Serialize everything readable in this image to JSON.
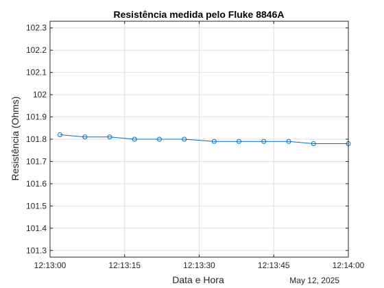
{
  "chart_data": {
    "type": "line",
    "title": "Resistência medida pelo Fluke 8846A",
    "xlabel": "Data e Hora",
    "ylabel": "Resistência (Ohms)",
    "date_label": "May 12, 2025",
    "x_ticks": [
      "12:13:00",
      "12:13:15",
      "12:13:30",
      "12:13:45",
      "12:14:00"
    ],
    "x_tick_seconds": [
      0,
      15,
      30,
      45,
      60
    ],
    "y_ticks": [
      "101.3",
      "101.4",
      "101.5",
      "101.6",
      "101.7",
      "101.8",
      "101.9",
      "102",
      "102.1",
      "102.2",
      "102.3"
    ],
    "y_tick_values": [
      101.3,
      101.4,
      101.5,
      101.6,
      101.7,
      101.8,
      101.9,
      102.0,
      102.1,
      102.2,
      102.3
    ],
    "xlim": [
      "12:13:00",
      "12:14:00"
    ],
    "xlim_seconds": [
      0,
      60
    ],
    "ylim": [
      101.27,
      102.33
    ],
    "grid": true,
    "series": [
      {
        "marker": "circle",
        "color": "#0072bd",
        "x_seconds": [
          2,
          7,
          12,
          17,
          22,
          27,
          33,
          38,
          43,
          48,
          53,
          60
        ],
        "values": [
          101.82,
          101.81,
          101.81,
          101.8,
          101.8,
          101.8,
          101.79,
          101.79,
          101.79,
          101.79,
          101.78,
          101.78
        ]
      }
    ]
  }
}
